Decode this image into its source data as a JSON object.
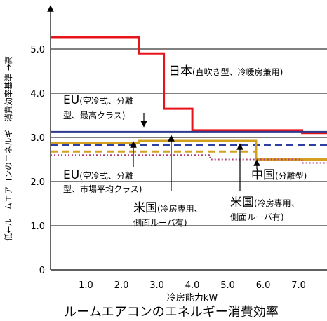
{
  "chart_data": {
    "type": "line",
    "title": "ルームエアコンのエネルギー消費効率",
    "xlabel": "冷房能力kW",
    "ylabel": "低←ルームエアコンのエネルギー消費効率基準 →高",
    "xlim": [
      0,
      7.8
    ],
    "ylim": [
      0,
      6.0
    ],
    "x_ticks": [
      "1.0",
      "2.0",
      "3.0",
      "4.0",
      "5.0",
      "6.0",
      "7.0"
    ],
    "x_tick_values": [
      1,
      2,
      3,
      4,
      5,
      6,
      7
    ],
    "y_ticks": [
      "0",
      "1.0",
      "2.0",
      "3.0",
      "4.0",
      "5.0"
    ],
    "y_tick_values": [
      0,
      1,
      2,
      3,
      4,
      5
    ],
    "grid": "horizontal",
    "series": [
      {
        "id": "japan",
        "color": "#e8141c",
        "style": "solid",
        "x": [
          0,
          2.5,
          2.5,
          3.2,
          3.2,
          4.0,
          4.0,
          7.1,
          7.1,
          7.8
        ],
        "y": [
          5.27,
          5.27,
          4.9,
          4.9,
          3.65,
          3.65,
          3.16,
          3.16,
          3.1,
          3.1
        ]
      },
      {
        "id": "eu-highest",
        "color": "#2f3a8f",
        "style": "solid",
        "x": [
          0,
          7.8
        ],
        "y": [
          3.12,
          3.12
        ]
      },
      {
        "id": "eu-average",
        "color": "#2d3fa0",
        "style": "dashed",
        "x": [
          0,
          7.8
        ],
        "y": [
          2.82,
          2.82
        ]
      },
      {
        "id": "usa-upper",
        "color": "#d4a020",
        "style": "solid",
        "x": [
          0,
          2.5,
          2.5,
          5.8,
          5.8,
          7.8
        ],
        "y": [
          2.87,
          2.87,
          2.92,
          2.92,
          2.5,
          2.5
        ]
      },
      {
        "id": "usa-lower",
        "color": "#d4a020",
        "style": "dashed",
        "x": [
          0,
          5.8,
          5.8,
          7.8
        ],
        "y": [
          2.68,
          2.68,
          2.5,
          2.5
        ]
      },
      {
        "id": "china",
        "color": "#b0407a",
        "style": "dotted",
        "x": [
          0,
          4.5,
          4.5,
          7.1,
          7.1,
          7.8
        ],
        "y": [
          2.6,
          2.6,
          2.5,
          2.5,
          2.42,
          2.42
        ]
      }
    ],
    "annotations": [
      {
        "id": "japan",
        "main": "日本",
        "sub": "(直吹き型、冷暖房兼用)"
      },
      {
        "id": "eu-highest",
        "main": "EU",
        "sub": "(空冷式、分離",
        "line2": "型、最高クラス)"
      },
      {
        "id": "eu-average",
        "main": "EU",
        "sub": "(空冷式、分離",
        "line2": "型、市場平均クラス)"
      },
      {
        "id": "china",
        "main": "中国",
        "sub": "(分離型)"
      },
      {
        "id": "usa-1",
        "main": "米国",
        "sub": "(冷房専用、",
        "line2": "側面ルーバ有)"
      },
      {
        "id": "usa-2",
        "main": "米国",
        "sub": "(冷房専用、",
        "line2": "側面ルーバ有)"
      }
    ]
  }
}
